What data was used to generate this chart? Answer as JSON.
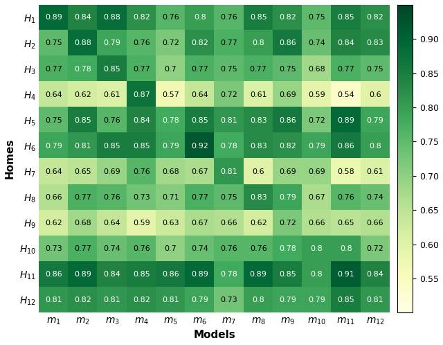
{
  "values": [
    [
      0.89,
      0.84,
      0.88,
      0.82,
      0.76,
      0.8,
      0.76,
      0.85,
      0.82,
      0.75,
      0.85,
      0.82
    ],
    [
      0.75,
      0.88,
      0.79,
      0.76,
      0.72,
      0.82,
      0.77,
      0.8,
      0.86,
      0.74,
      0.84,
      0.83
    ],
    [
      0.77,
      0.78,
      0.85,
      0.77,
      0.7,
      0.77,
      0.75,
      0.77,
      0.75,
      0.68,
      0.77,
      0.75
    ],
    [
      0.64,
      0.62,
      0.61,
      0.87,
      0.57,
      0.64,
      0.72,
      0.61,
      0.69,
      0.59,
      0.54,
      0.6
    ],
    [
      0.75,
      0.85,
      0.76,
      0.84,
      0.78,
      0.85,
      0.81,
      0.83,
      0.86,
      0.72,
      0.89,
      0.79
    ],
    [
      0.79,
      0.81,
      0.85,
      0.85,
      0.79,
      0.92,
      0.78,
      0.83,
      0.82,
      0.79,
      0.86,
      0.8
    ],
    [
      0.64,
      0.65,
      0.69,
      0.76,
      0.68,
      0.67,
      0.81,
      0.6,
      0.69,
      0.69,
      0.58,
      0.61
    ],
    [
      0.66,
      0.77,
      0.76,
      0.73,
      0.71,
      0.77,
      0.75,
      0.83,
      0.79,
      0.67,
      0.76,
      0.74
    ],
    [
      0.62,
      0.68,
      0.64,
      0.59,
      0.63,
      0.67,
      0.66,
      0.62,
      0.72,
      0.66,
      0.65,
      0.66
    ],
    [
      0.73,
      0.77,
      0.74,
      0.76,
      0.7,
      0.74,
      0.76,
      0.76,
      0.78,
      0.8,
      0.8,
      0.72
    ],
    [
      0.86,
      0.89,
      0.84,
      0.85,
      0.86,
      0.89,
      0.78,
      0.89,
      0.85,
      0.8,
      0.91,
      0.84
    ],
    [
      0.81,
      0.82,
      0.81,
      0.82,
      0.81,
      0.79,
      0.73,
      0.8,
      0.79,
      0.79,
      0.85,
      0.81
    ]
  ],
  "row_labels": [
    "$H_1$",
    "$H_2$",
    "$H_3$",
    "$H_4$",
    "$H_5$",
    "$H_6$",
    "$H_7$",
    "$H_8$",
    "$H_9$",
    "$H_{10}$",
    "$H_{11}$",
    "$H_{12}$"
  ],
  "col_labels": [
    "$m_1$",
    "$m_2$",
    "$m_3$",
    "$m_4$",
    "$m_5$",
    "$m_6$",
    "$m_7$",
    "$m_8$",
    "$m_9$",
    "$m_{10}$",
    "$m_{11}$",
    "$m_{12}$"
  ],
  "xlabel": "Models",
  "ylabel": "Homes",
  "cmap": "YlGn",
  "vmin": 0.5,
  "vmax": 0.95,
  "colorbar_ticks": [
    0.55,
    0.6,
    0.65,
    0.7,
    0.75,
    0.8,
    0.85,
    0.9
  ],
  "colorbar_ticklabels": [
    "0.55",
    "0.60",
    "0.65",
    "0.70",
    "0.75",
    "0.80",
    "0.85",
    "0.90"
  ],
  "text_threshold_white": 0.775,
  "figsize": [
    6.4,
    4.98
  ],
  "dpi": 100,
  "cell_fontsize": 8,
  "axis_label_fontsize": 11,
  "tick_fontsize": 10,
  "cbar_fontsize": 9
}
